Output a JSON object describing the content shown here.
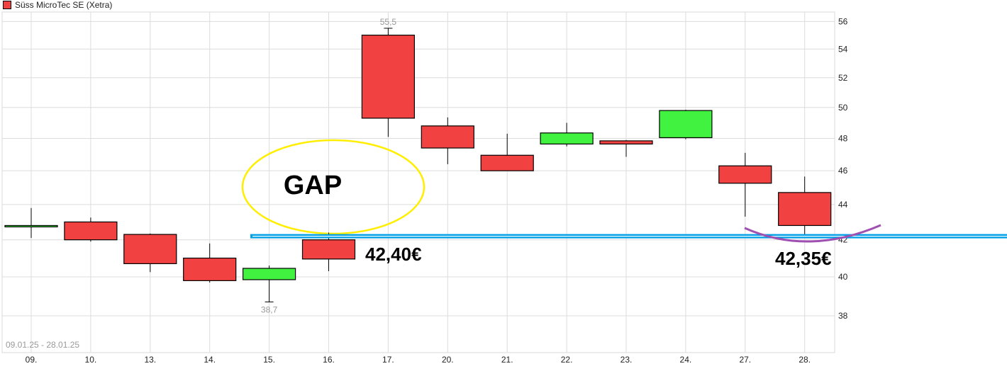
{
  "chart_data": {
    "type": "candlestick",
    "legend": {
      "label": "Süss MicroTec SE (Xetra)",
      "color": "#f24141"
    },
    "date_range": "09.01.25 - 28.01.25",
    "y_scale": "log",
    "ylim": [
      36.2,
      56.7
    ],
    "y_ticks": [
      38,
      40,
      42,
      44,
      46,
      48,
      50,
      52,
      54,
      56
    ],
    "grid": true,
    "up_color": "#41f241",
    "down_color": "#f24141",
    "categories": [
      "09.",
      "10.",
      "13.",
      "14.",
      "15.",
      "16.",
      "17.",
      "20.",
      "21.",
      "22.",
      "23.",
      "24.",
      "27.",
      "28."
    ],
    "candles": [
      {
        "open": 42.8,
        "high": 43.8,
        "low": 42.1,
        "close": 42.8
      },
      {
        "open": 43.0,
        "high": 43.25,
        "low": 41.9,
        "close": 42.0
      },
      {
        "open": 42.3,
        "high": 42.35,
        "low": 40.25,
        "close": 40.7
      },
      {
        "open": 41.0,
        "high": 41.8,
        "low": 39.7,
        "close": 39.8
      },
      {
        "open": 39.85,
        "high": 40.6,
        "low": 38.7,
        "close": 40.45
      },
      {
        "open": 42.0,
        "high": 42.4,
        "low": 40.3,
        "close": 40.95
      },
      {
        "open": 55.0,
        "high": 55.5,
        "low": 48.1,
        "close": 49.3
      },
      {
        "open": 48.8,
        "high": 49.35,
        "low": 46.4,
        "close": 47.4
      },
      {
        "open": 46.95,
        "high": 48.3,
        "low": 46.0,
        "close": 46.0
      },
      {
        "open": 47.65,
        "high": 49.0,
        "low": 47.5,
        "close": 48.35
      },
      {
        "open": 47.85,
        "high": 47.9,
        "low": 46.85,
        "close": 47.65
      },
      {
        "open": 48.05,
        "high": 49.85,
        "low": 47.95,
        "close": 49.8
      },
      {
        "open": 46.3,
        "high": 47.1,
        "low": 43.3,
        "close": 45.25
      },
      {
        "open": 44.7,
        "high": 45.65,
        "low": 42.3,
        "close": 42.8
      }
    ],
    "max_label": "55,5",
    "min_label": "38,7",
    "annotations": {
      "gap_label": "GAP",
      "gap_ellipse_color": "#ffee00",
      "support_line_value": 42.2,
      "support_line_color": "#00a0e6",
      "curve_color": "#a050b0",
      "price_label_1": "42,40€",
      "price_label_2": "42,35€"
    }
  }
}
